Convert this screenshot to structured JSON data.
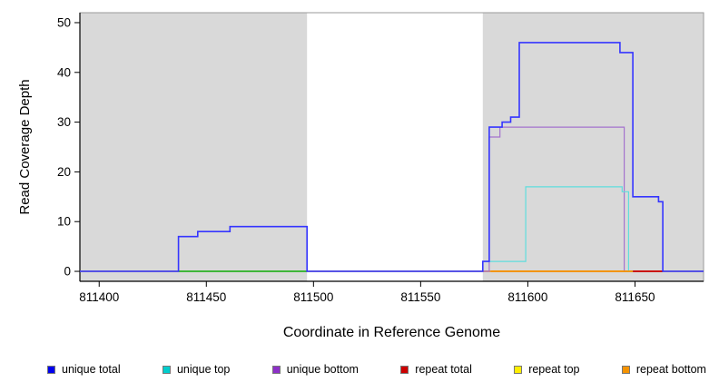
{
  "chart_data": {
    "type": "line",
    "title": "",
    "xlabel": "Coordinate in Reference Genome",
    "ylabel": "Read Coverage Depth",
    "xlim": [
      811391,
      811682
    ],
    "ylim": [
      -2,
      52
    ],
    "x_ticks": [
      811400,
      811450,
      811500,
      811550,
      811600,
      811650
    ],
    "y_ticks": [
      0,
      10,
      20,
      30,
      40,
      50
    ],
    "grid": false,
    "shading": {
      "color": "#d9d9d9",
      "regions": [
        [
          811391,
          811497
        ],
        [
          811579,
          811682
        ]
      ]
    },
    "series": [
      {
        "name": "repeat top",
        "color": "#ffee00",
        "width": 1.2,
        "points": [
          [
            811391,
            0
          ]
        ]
      },
      {
        "name": "repeat total",
        "color": "#cc0000",
        "width": 1.2,
        "points": [
          [
            811391,
            0
          ]
        ]
      },
      {
        "name": "repeat bottom",
        "color": "#f59300",
        "width": 1.2,
        "points": [
          [
            811391,
            0
          ]
        ]
      },
      {
        "name": "unique bottom",
        "color": "#a473ce",
        "width": 1.2,
        "points": [
          [
            811391,
            0
          ],
          [
            811582,
            27
          ],
          [
            811587,
            29
          ],
          [
            811645,
            0
          ]
        ]
      },
      {
        "name": "unique top",
        "color": "#5fdddd",
        "width": 1.2,
        "points": [
          [
            811391,
            0
          ],
          [
            811579,
            2
          ],
          [
            811599,
            17
          ],
          [
            811644,
            16
          ],
          [
            811647,
            0
          ]
        ]
      },
      {
        "name": "baseline segment green",
        "color": "#2eb82e",
        "width": 1.8,
        "segment": [
          811437,
          811497
        ],
        "y": 0
      },
      {
        "name": "baseline segment orange",
        "color": "#f59300",
        "width": 1.8,
        "segment": [
          811583,
          811649
        ],
        "y": 0
      },
      {
        "name": "baseline segment red",
        "color": "#cc0000",
        "width": 1.8,
        "segment": [
          811649,
          811663
        ],
        "y": 0
      },
      {
        "name": "unique total",
        "color": "#3535ff",
        "width": 1.6,
        "points": [
          [
            811391,
            0
          ],
          [
            811437,
            7
          ],
          [
            811446,
            8
          ],
          [
            811461,
            9
          ],
          [
            811497,
            0
          ],
          [
            811579,
            2
          ],
          [
            811582,
            29
          ],
          [
            811588,
            30
          ],
          [
            811592,
            31
          ],
          [
            811596,
            46
          ],
          [
            811643,
            44
          ],
          [
            811649,
            15
          ],
          [
            811661,
            14
          ],
          [
            811663,
            0
          ]
        ]
      }
    ],
    "legend": {
      "position": "bottom",
      "entries": [
        {
          "label": "unique total",
          "color": "#0000ee"
        },
        {
          "label": "unique top",
          "color": "#00cdcd"
        },
        {
          "label": "unique bottom",
          "color": "#8d30c8"
        },
        {
          "label": "repeat total",
          "color": "#cc0000"
        },
        {
          "label": "repeat top",
          "color": "#ffee00"
        },
        {
          "label": "repeat bottom",
          "color": "#f59300"
        }
      ]
    }
  }
}
